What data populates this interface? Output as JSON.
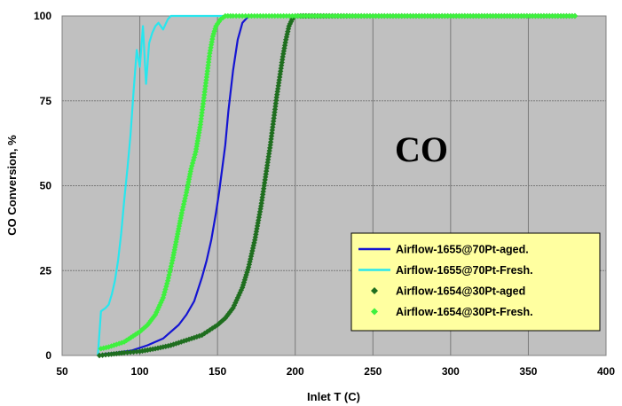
{
  "chart_data": {
    "type": "scatter",
    "title": "",
    "annotation": "CO",
    "xlabel": "Inlet T (C)",
    "ylabel": "CO Conversion, %",
    "xlim": [
      50,
      400
    ],
    "ylim": [
      0,
      100
    ],
    "xticks": [
      50,
      100,
      150,
      200,
      250,
      300,
      350,
      400
    ],
    "yticks": [
      0,
      25,
      50,
      75,
      100
    ],
    "grid": true,
    "legend_position": "bottom-right",
    "series": [
      {
        "name": "Airflow-1655@70Pt-aged.",
        "marker": "line",
        "color": "#1414d2",
        "x": [
          73,
          78,
          85,
          95,
          105,
          115,
          125,
          130,
          135,
          140,
          143,
          146,
          149,
          151,
          153,
          155,
          157,
          160,
          163,
          166,
          170,
          180,
          200,
          250,
          300,
          380
        ],
        "y": [
          0,
          0.5,
          0.8,
          1.5,
          3,
          5,
          9,
          12,
          16,
          23,
          28,
          34,
          42,
          48,
          55,
          62,
          72,
          84,
          93,
          98,
          100,
          100,
          100,
          100,
          100,
          100
        ]
      },
      {
        "name": "Airflow-1655@70Pt-Fresh.",
        "marker": "line",
        "color": "#28e6ee",
        "x": [
          73,
          75,
          78,
          80,
          82,
          84,
          86,
          88,
          90,
          92,
          94,
          96,
          98,
          100,
          102,
          104,
          106,
          108,
          110,
          112,
          115,
          118,
          120,
          125,
          130,
          150,
          200,
          300,
          380
        ],
        "y": [
          0,
          13,
          14,
          15,
          18,
          22,
          28,
          36,
          46,
          55,
          65,
          78,
          90,
          85,
          97,
          80,
          92,
          95,
          97,
          98,
          96,
          99,
          100,
          100,
          100,
          100,
          100,
          100,
          100
        ]
      },
      {
        "name": "Airflow-1654@30Pt-aged",
        "marker": "diamond",
        "color": "#1f6e1f",
        "x": [
          74,
          80,
          90,
          100,
          110,
          120,
          130,
          140,
          145,
          150,
          155,
          160,
          163,
          166,
          168,
          170,
          172,
          174,
          176,
          178,
          180,
          182,
          184,
          186,
          188,
          190,
          192,
          194,
          196,
          198,
          200,
          205,
          220,
          250,
          300,
          380
        ],
        "y": [
          0,
          0.3,
          0.8,
          1.2,
          2,
          3,
          4.5,
          6,
          7.5,
          9,
          11,
          14,
          17,
          20,
          23,
          26,
          30,
          34,
          39,
          44,
          50,
          56,
          62,
          69,
          76,
          82,
          88,
          93,
          97,
          99,
          100,
          100,
          100,
          100,
          100,
          100
        ]
      },
      {
        "name": "Airflow-1654@30Pt-Fresh.",
        "marker": "diamond",
        "color": "#3ef03e",
        "x": [
          75,
          80,
          90,
          100,
          105,
          110,
          115,
          118,
          121,
          124,
          127,
          130,
          133,
          136,
          139,
          141,
          143,
          145,
          147,
          149,
          152,
          155,
          160,
          170,
          200,
          250,
          300,
          380
        ],
        "y": [
          2,
          2.5,
          4,
          7,
          9,
          12,
          17,
          22,
          28,
          35,
          42,
          48,
          55,
          60,
          68,
          75,
          82,
          89,
          94,
          97,
          99,
          100,
          100,
          100,
          100,
          100,
          100,
          100
        ]
      }
    ]
  }
}
